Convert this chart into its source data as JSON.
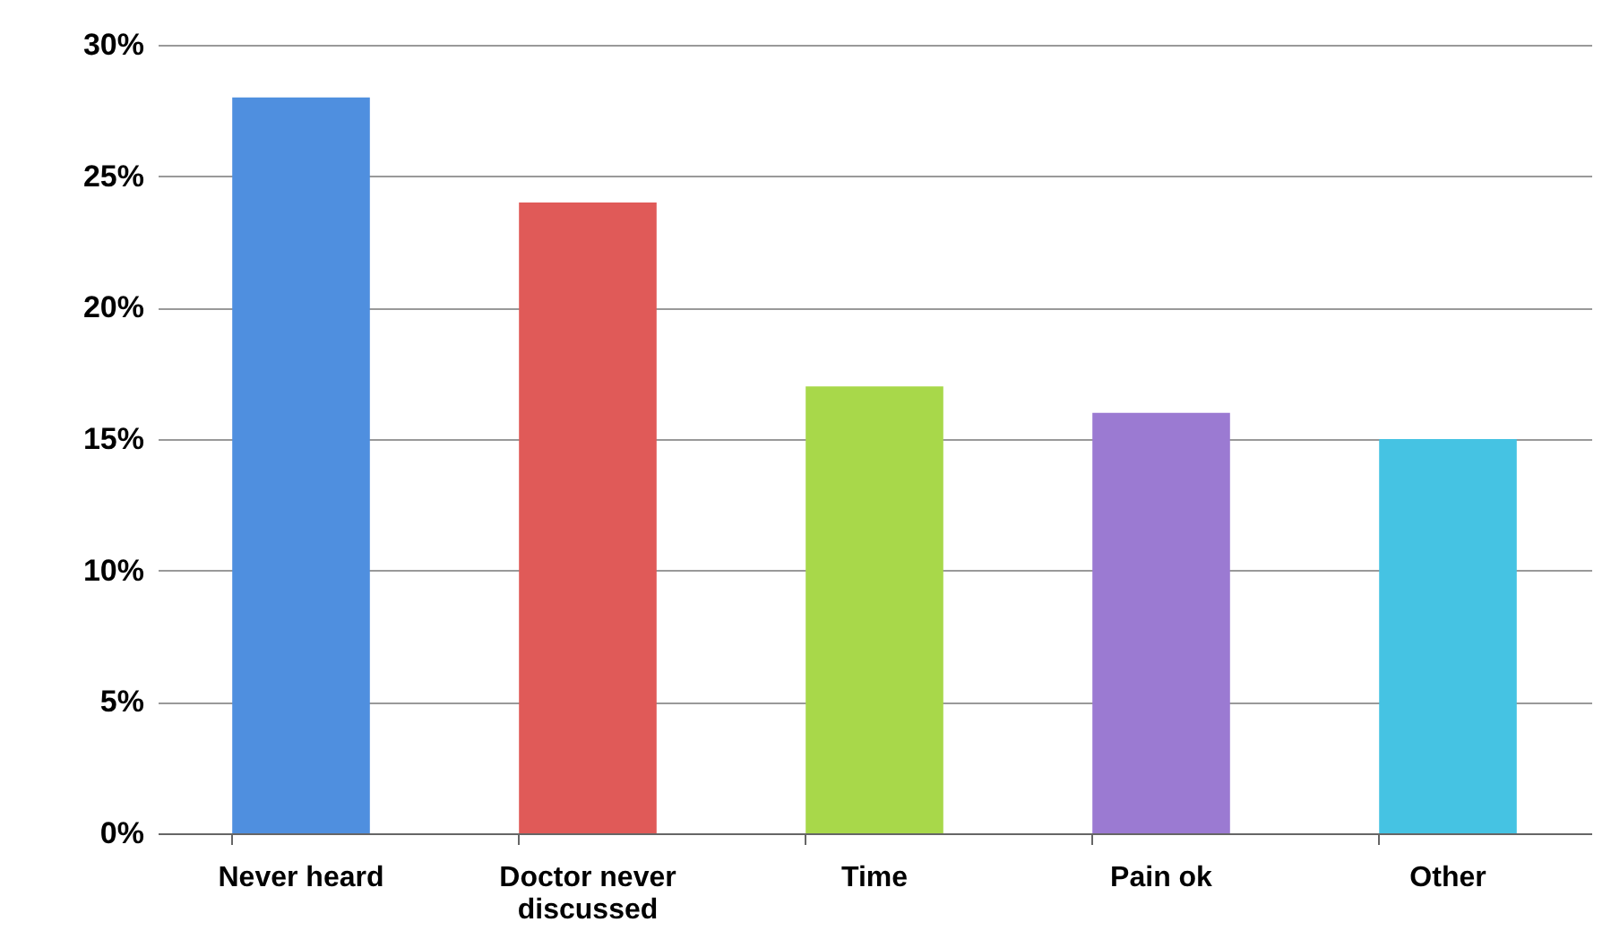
{
  "chart_data": {
    "type": "bar",
    "categories": [
      "Never heard",
      "Doctor never discussed",
      "Time",
      "Pain ok",
      "Other"
    ],
    "values": [
      28,
      24,
      17,
      16,
      15
    ],
    "colors": [
      "#4f8fdf",
      "#e05a58",
      "#a8d84a",
      "#9b7ad2",
      "#45c3e3"
    ],
    "ylim": [
      0,
      30
    ],
    "yticks": [
      {
        "value": 0,
        "label": "0%"
      },
      {
        "value": 5,
        "label": "5%"
      },
      {
        "value": 10,
        "label": "10%"
      },
      {
        "value": 15,
        "label": "15%"
      },
      {
        "value": 20,
        "label": "20%"
      },
      {
        "value": 25,
        "label": "25%"
      },
      {
        "value": 30,
        "label": "30%"
      }
    ],
    "grid": "y"
  }
}
